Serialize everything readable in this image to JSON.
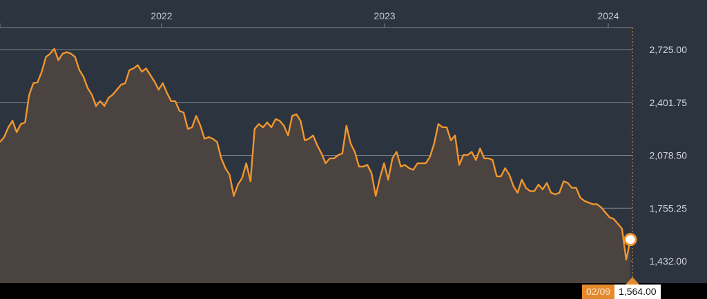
{
  "chart_data": {
    "type": "area",
    "x_ticks": [
      "2022",
      "2023",
      "2024"
    ],
    "y_ticks": [
      "2,725.00",
      "2,401.75",
      "2,078.50",
      "1,755.25",
      "1,432.00"
    ],
    "y_tick_values": [
      2725.0,
      2401.75,
      2078.5,
      1755.25,
      1432.0
    ],
    "ylim": [
      1432.0,
      2725.0
    ],
    "grid": true,
    "series": [
      {
        "values": [
          2160,
          2190,
          2250,
          2290,
          2220,
          2270,
          2280,
          2450,
          2520,
          2525,
          2590,
          2680,
          2700,
          2730,
          2660,
          2700,
          2710,
          2700,
          2680,
          2600,
          2560,
          2490,
          2450,
          2380,
          2410,
          2380,
          2430,
          2450,
          2480,
          2510,
          2520,
          2600,
          2610,
          2630,
          2590,
          2610,
          2570,
          2530,
          2480,
          2520,
          2460,
          2410,
          2410,
          2350,
          2340,
          2240,
          2250,
          2320,
          2260,
          2180,
          2190,
          2180,
          2160,
          2060,
          2000,
          1960,
          1830,
          1900,
          1940,
          2030,
          1920,
          2240,
          2270,
          2250,
          2280,
          2250,
          2300,
          2290,
          2260,
          2200,
          2320,
          2330,
          2290,
          2170,
          2180,
          2200,
          2140,
          2090,
          2030,
          2060,
          2060,
          2080,
          2090,
          2260,
          2150,
          2100,
          2010,
          2010,
          2020,
          1970,
          1830,
          1940,
          2030,
          1930,
          2060,
          2100,
          2010,
          2020,
          2000,
          1990,
          2030,
          2030,
          2030,
          2070,
          2150,
          2270,
          2250,
          2250,
          2170,
          2200,
          2020,
          2080,
          2080,
          2100,
          2050,
          2120,
          2060,
          2060,
          2050,
          1950,
          1950,
          2000,
          1960,
          1890,
          1850,
          1930,
          1880,
          1860,
          1860,
          1900,
          1870,
          1910,
          1850,
          1840,
          1850,
          1920,
          1910,
          1880,
          1880,
          1820,
          1800,
          1790,
          1780,
          1780,
          1760,
          1730,
          1700,
          1690,
          1660,
          1630,
          1440,
          1564
        ]
      }
    ],
    "current_point": {
      "date": "02/09",
      "value": "1,564.00"
    },
    "colors": {
      "line": "#f0962e",
      "fill": "#4a433f",
      "background": "#2c3440"
    }
  }
}
